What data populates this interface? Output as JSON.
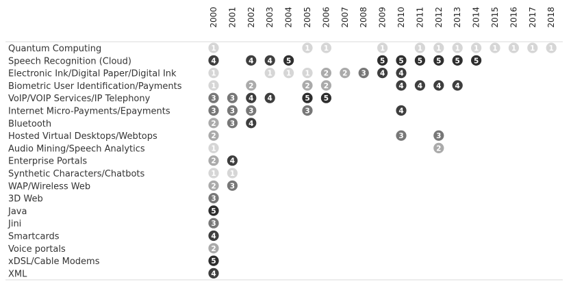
{
  "chart_data": {
    "type": "table",
    "title": "",
    "xlabel": "",
    "ylabel": "",
    "years": [
      "2000",
      "2001",
      "2002",
      "2003",
      "2004",
      "2005",
      "2006",
      "2007",
      "2008",
      "2009",
      "2010",
      "2011",
      "2012",
      "2013",
      "2014",
      "2015",
      "2016",
      "2017",
      "2018"
    ],
    "rows": [
      {
        "label": "Quantum Computing",
        "values": {
          "2000": 1,
          "2005": 1,
          "2006": 1,
          "2009": 1,
          "2011": 1,
          "2012": 1,
          "2013": 1,
          "2014": 1,
          "2015": 1,
          "2016": 1,
          "2017": 1,
          "2018": 1
        }
      },
      {
        "label": "Speech Recognition (Cloud)",
        "values": {
          "2000": 4,
          "2002": 4,
          "2003": 4,
          "2004": 5,
          "2009": 5,
          "2010": 5,
          "2011": 5,
          "2012": 5,
          "2013": 5,
          "2014": 5
        }
      },
      {
        "label": "Electronic Ink/Digital Paper/Digital Ink",
        "values": {
          "2000": 1,
          "2003": 1,
          "2004": 1,
          "2005": 1,
          "2006": 2,
          "2007": 2,
          "2008": 3,
          "2009": 4,
          "2010": 4
        }
      },
      {
        "label": "Biometric User Identification/Payments",
        "values": {
          "2000": 1,
          "2002": 2,
          "2005": 2,
          "2006": 2,
          "2010": 4,
          "2011": 4,
          "2012": 4,
          "2013": 4
        }
      },
      {
        "label": "VoIP/VOIP Services/IP Telephony",
        "values": {
          "2000": 3,
          "2001": 3,
          "2002": 4,
          "2003": 4,
          "2005": 5,
          "2006": 5
        }
      },
      {
        "label": "Internet Micro-Payments/Epayments",
        "values": {
          "2000": 3,
          "2001": 3,
          "2002": 3,
          "2005": 3,
          "2010": 4
        }
      },
      {
        "label": "Bluetooth",
        "values": {
          "2000": 2,
          "2001": 3,
          "2002": 4
        }
      },
      {
        "label": "Hosted Virtual Desktops/Webtops",
        "values": {
          "2000": 2,
          "2010": 3,
          "2012": 3
        }
      },
      {
        "label": "Audio Mining/Speech Analytics",
        "values": {
          "2000": 1,
          "2012": 2
        }
      },
      {
        "label": "Enterprise Portals",
        "values": {
          "2000": 2,
          "2001": 4
        }
      },
      {
        "label": "Synthetic Characters/Chatbots",
        "values": {
          "2000": 1,
          "2001": 1
        }
      },
      {
        "label": "WAP/Wireless Web",
        "values": {
          "2000": 2,
          "2001": 3
        }
      },
      {
        "label": "3D Web",
        "values": {
          "2000": 3
        }
      },
      {
        "label": "Java",
        "values": {
          "2000": 5
        }
      },
      {
        "label": "Jini",
        "values": {
          "2000": 3
        }
      },
      {
        "label": "Smartcards",
        "values": {
          "2000": 4
        }
      },
      {
        "label": "Voice portals",
        "values": {
          "2000": 2
        }
      },
      {
        "label": "xDSL/Cable Modems",
        "values": {
          "2000": 5
        }
      },
      {
        "label": "XML",
        "values": {
          "2000": 4
        }
      }
    ],
    "level_colors": {
      "1": "#d6d6d6",
      "2": "#aaaaaa",
      "3": "#777777",
      "4": "#3e3e3e",
      "5": "#2e2e2e"
    },
    "grid": false,
    "legend": "none"
  }
}
